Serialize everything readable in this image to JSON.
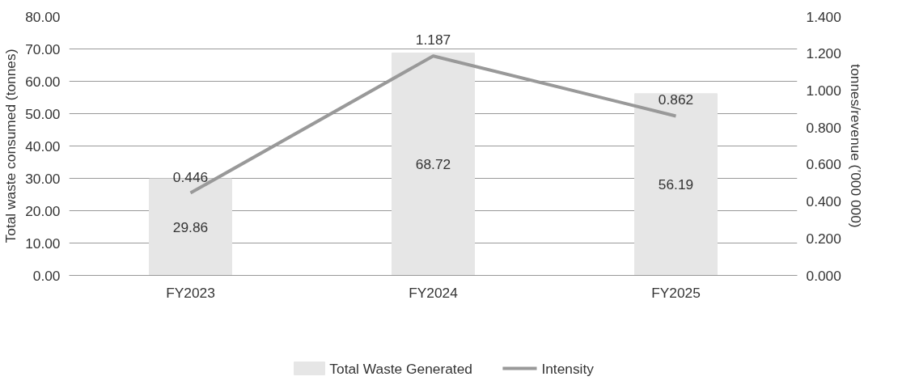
{
  "chart_data": {
    "type": "bar",
    "categories": [
      "FY2023",
      "FY2024",
      "FY2025"
    ],
    "series": [
      {
        "name": "Total Waste Generated",
        "color": "#e6e6e6",
        "values": [
          29.86,
          68.72,
          56.19
        ]
      },
      {
        "name": "Intensity",
        "type": "line",
        "axis": "y2",
        "color": "#999999",
        "values": [
          0.446,
          1.187,
          0.862
        ]
      }
    ],
    "ylabel": "Total waste consumed (tonnes)",
    "y2label": "tonnes/revenue (’000 000)",
    "ylim": [
      0,
      80
    ],
    "yticks": [
      {
        "value": 0,
        "label": "0.00"
      },
      {
        "value": 10,
        "label": "10.00"
      },
      {
        "value": 20,
        "label": "20.00"
      },
      {
        "value": 30,
        "label": "30.00"
      },
      {
        "value": 40,
        "label": "40.00"
      },
      {
        "value": 50,
        "label": "50.00"
      },
      {
        "value": 60,
        "label": "60.00"
      },
      {
        "value": 70,
        "label": "70.00"
      },
      {
        "value": 80,
        "label": "80.00"
      }
    ],
    "y2lim": [
      0,
      1.4
    ],
    "y2ticks": [
      {
        "value": 0,
        "label": "0.000"
      },
      {
        "value": 0.2,
        "label": "0.200"
      },
      {
        "value": 0.4,
        "label": "0.400"
      },
      {
        "value": 0.6,
        "label": "0.600"
      },
      {
        "value": 0.8,
        "label": "0.800"
      },
      {
        "value": 1.0,
        "label": "1.000"
      },
      {
        "value": 1.2,
        "label": "1.200"
      },
      {
        "value": 1.4,
        "label": "1.400"
      }
    ],
    "grid": "y",
    "legend": "bottom",
    "data_labels": true,
    "marker": "none",
    "line_style": "solid"
  }
}
